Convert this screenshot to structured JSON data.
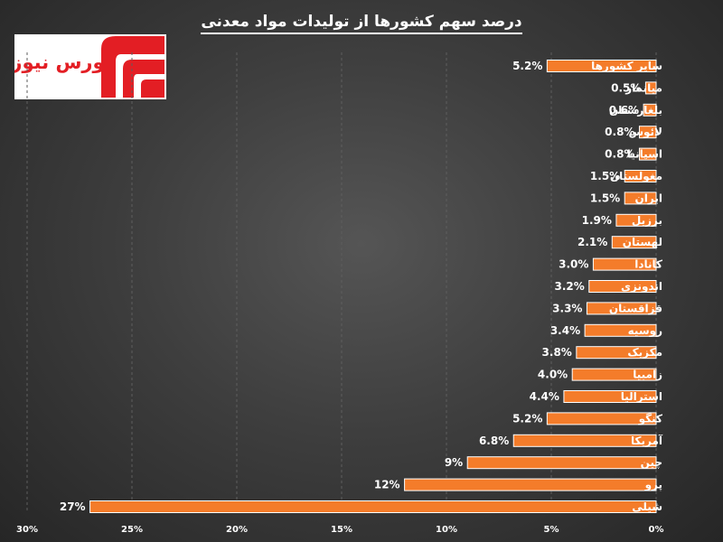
{
  "logo": {
    "text": "بورس نیوز",
    "brand_color": "#e31e24"
  },
  "chart_data": {
    "type": "bar",
    "orientation": "horizontal",
    "direction": "right-to-left",
    "title": "درصد سهم کشورها از تولیدات مواد معدنی",
    "categories": [
      "سایر کشورها",
      "میانمار",
      "بلغارستان",
      "لائوس",
      "اسپانیا",
      "مغولستان",
      "ایران",
      "برزیل",
      "لهستان",
      "کانادا",
      "اندونزی",
      "قزاقستان",
      "روسیه",
      "مکزیک",
      "زامبیا",
      "استرالیا",
      "کنگو",
      "آمریکا",
      "چین",
      "پرو",
      "شیلی"
    ],
    "values": [
      5.2,
      0.5,
      0.6,
      0.8,
      0.8,
      1.5,
      1.5,
      1.9,
      2.1,
      3.0,
      3.2,
      3.3,
      3.4,
      3.8,
      4.0,
      4.4,
      5.2,
      6.8,
      9,
      12,
      27
    ],
    "value_labels": [
      "5.2%",
      "0.5%",
      "0.6%",
      "0.8%",
      "0.8%",
      "1.5%",
      "1.5%",
      "1.9%",
      "2.1%",
      "3.0%",
      "3.2%",
      "3.3%",
      "3.4%",
      "3.8%",
      "4.0%",
      "4.4%",
      "5.2%",
      "6.8%",
      "9%",
      "12%",
      "27%"
    ],
    "xlim": [
      0,
      30
    ],
    "x_ticks": [
      0,
      5,
      10,
      15,
      20,
      25,
      30
    ],
    "x_tick_labels": [
      "0%",
      "5%",
      "10%",
      "15%",
      "20%",
      "25%",
      "30%"
    ],
    "grid": true,
    "bar_color": "#f47c2a"
  }
}
